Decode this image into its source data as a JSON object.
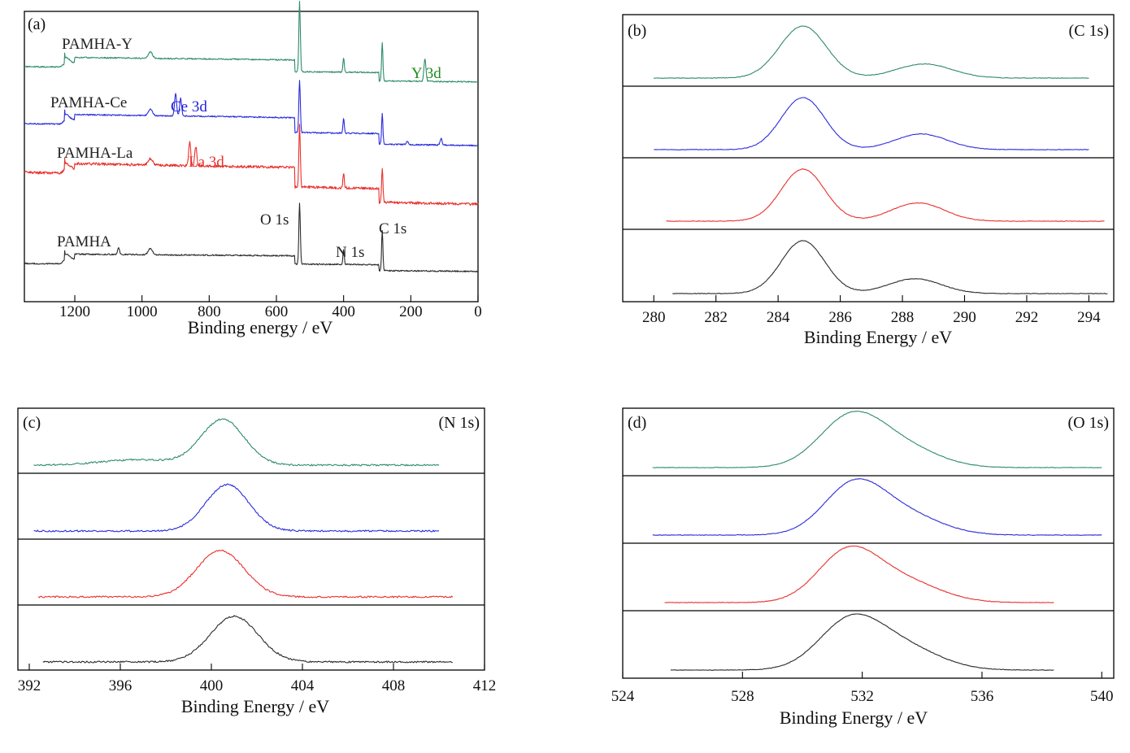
{
  "colors": {
    "black": "#2a2a2a",
    "red": "#e8302c",
    "blue": "#2b2bdc",
    "green": "#2e8b6a",
    "y_label": "#1f8a1f",
    "ce_label": "#2222dd",
    "la_label": "#e8302c"
  },
  "chart_data": [
    {
      "type": "line",
      "panel": "(a)",
      "xlabel": "Binding energy / eV",
      "xlim": [
        1350,
        0
      ],
      "xticks": [
        1200,
        1000,
        800,
        600,
        400,
        200,
        0
      ],
      "xtick_labels": [
        "1200",
        "1000",
        "800",
        "600",
        "400",
        "200",
        "0"
      ],
      "series": [
        {
          "name": "PAMHA-Y",
          "color": "green",
          "offset": 0
        },
        {
          "name": "PAMHA-Ce",
          "color": "blue",
          "offset": 1
        },
        {
          "name": "PAMHA-La",
          "color": "red",
          "offset": 2
        },
        {
          "name": "PAMHA",
          "color": "black",
          "offset": 3
        }
      ],
      "annotations": [
        {
          "text": "Y 3d",
          "color": "y_label"
        },
        {
          "text": "Ce 3d",
          "color": "ce_label"
        },
        {
          "text": "La 3d",
          "color": "la_label"
        },
        {
          "text": "O 1s",
          "color": "black"
        },
        {
          "text": "N 1s",
          "color": "black"
        },
        {
          "text": "C 1s",
          "color": "black"
        }
      ],
      "peaks_eV": [
        {
          "label": "O 1s",
          "x": 531
        },
        {
          "label": "N 1s",
          "x": 400
        },
        {
          "label": "C 1s",
          "x": 285
        },
        {
          "label": "Y 3d",
          "x": 158
        },
        {
          "label": "Ce 3d",
          "x": 900
        },
        {
          "label": "La 3d",
          "x": 845
        }
      ]
    },
    {
      "type": "line",
      "panel": "(b)",
      "label": "(C 1s)",
      "xlabel": "Binding Energy / eV",
      "xlim": [
        279,
        294.8
      ],
      "xticks": [
        280,
        282,
        284,
        286,
        288,
        290,
        292,
        294
      ],
      "xtick_labels": [
        "280",
        "282",
        "284",
        "286",
        "288",
        "290",
        "292",
        "294"
      ],
      "series": [
        {
          "name": "PAMHA-Y",
          "color": "green",
          "x_range": [
            280,
            294
          ],
          "peaks": [
            [
              284.8,
              1.0,
              0.75
            ],
            [
              288.7,
              0.27,
              0.9
            ]
          ]
        },
        {
          "name": "PAMHA-Ce",
          "color": "blue",
          "x_range": [
            280,
            294
          ],
          "peaks": [
            [
              284.8,
              1.0,
              0.7
            ],
            [
              288.6,
              0.3,
              0.85
            ]
          ]
        },
        {
          "name": "PAMHA-La",
          "color": "red",
          "x_range": [
            280.4,
            294.5
          ],
          "peaks": [
            [
              284.8,
              1.0,
              0.7
            ],
            [
              288.5,
              0.35,
              0.85
            ]
          ]
        },
        {
          "name": "PAMHA",
          "color": "black",
          "x_range": [
            280.6,
            294.6
          ],
          "peaks": [
            [
              284.8,
              1.0,
              0.7
            ],
            [
              288.4,
              0.28,
              0.85
            ]
          ]
        }
      ]
    },
    {
      "type": "line",
      "panel": "(c)",
      "label": "(N 1s)",
      "xlabel": "Binding Energy / eV",
      "xlim": [
        391.5,
        412
      ],
      "xticks": [
        392,
        396,
        400,
        404,
        408,
        412
      ],
      "xtick_labels": [
        "392",
        "396",
        "400",
        "404",
        "408",
        "412"
      ],
      "series": [
        {
          "name": "PAMHA-Y",
          "color": "green",
          "x_range": [
            392.2,
            410
          ],
          "peaks": [
            [
              400.5,
              1.0,
              0.95
            ],
            [
              396.8,
              0.12,
              1.6
            ]
          ]
        },
        {
          "name": "PAMHA-Ce",
          "color": "blue",
          "x_range": [
            392.2,
            410
          ],
          "peaks": [
            [
              400.7,
              1.0,
              0.95
            ]
          ]
        },
        {
          "name": "PAMHA-La",
          "color": "red",
          "x_range": [
            392.4,
            410.6
          ],
          "peaks": [
            [
              400.4,
              1.0,
              1.05
            ]
          ]
        },
        {
          "name": "PAMHA",
          "color": "black",
          "x_range": [
            392.6,
            410.6
          ],
          "peaks": [
            [
              401.0,
              1.0,
              1.05
            ]
          ]
        }
      ]
    },
    {
      "type": "line",
      "panel": "(d)",
      "label": "(O 1s)",
      "xlabel": "Binding Energy / eV",
      "xlim": [
        524,
        540.4
      ],
      "xticks": [
        524,
        528,
        532,
        536,
        540
      ],
      "xtick_labels": [
        "524",
        "528",
        "532",
        "536",
        "540"
      ],
      "series": [
        {
          "name": "PAMHA-Y",
          "color": "green",
          "x_range": [
            525,
            540
          ],
          "peaks": [
            [
              531.6,
              1.0,
              1.05
            ],
            [
              533.3,
              0.42,
              1.2
            ]
          ]
        },
        {
          "name": "PAMHA-Ce",
          "color": "blue",
          "x_range": [
            525,
            540
          ],
          "peaks": [
            [
              531.7,
              1.0,
              1.0
            ],
            [
              533.4,
              0.42,
              1.2
            ]
          ]
        },
        {
          "name": "PAMHA-La",
          "color": "red",
          "x_range": [
            525.4,
            538.4
          ],
          "peaks": [
            [
              531.5,
              1.0,
              1.0
            ],
            [
              533.3,
              0.45,
              1.25
            ]
          ]
        },
        {
          "name": "PAMHA",
          "color": "black",
          "x_range": [
            525.6,
            538.4
          ],
          "peaks": [
            [
              531.6,
              1.0,
              1.05
            ],
            [
              533.4,
              0.45,
              1.2
            ]
          ]
        }
      ]
    }
  ]
}
